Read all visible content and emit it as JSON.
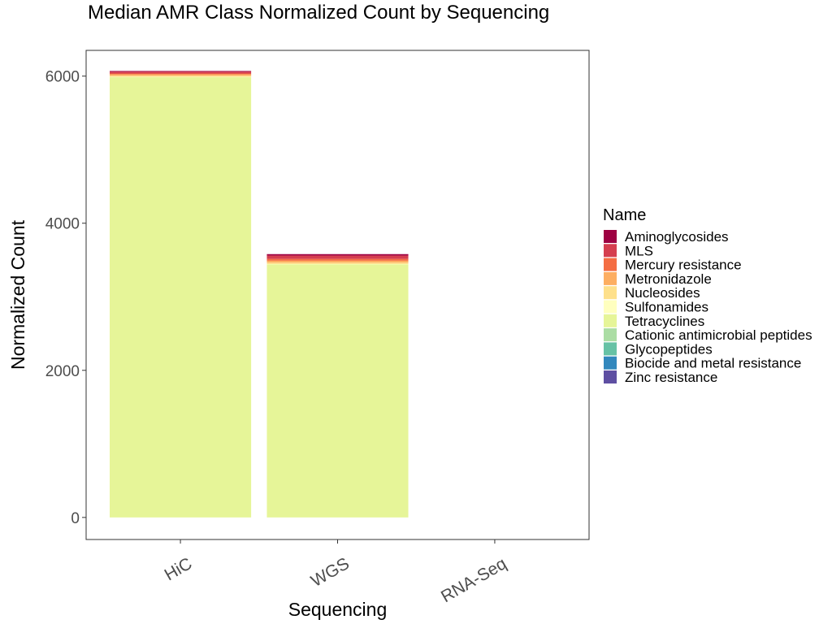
{
  "chart_data": {
    "type": "bar",
    "stacked": true,
    "title": "Median AMR Class Normalized Count by Sequencing",
    "xlabel": "Sequencing",
    "ylabel": "Normalized Count",
    "categories": [
      "HiC",
      "WGS",
      "RNA-Seq"
    ],
    "ylim": [
      -300,
      6350
    ],
    "yticks": [
      0,
      2000,
      4000,
      6000
    ],
    "grid": false,
    "legend": {
      "title": "Name",
      "position": "right"
    },
    "series": [
      {
        "name": "Aminoglycosides",
        "color": "#9E0142",
        "values": [
          10,
          20,
          0
        ]
      },
      {
        "name": "MLS",
        "color": "#D53E4F",
        "values": [
          25,
          45,
          0
        ]
      },
      {
        "name": "Mercury resistance",
        "color": "#F46D43",
        "values": [
          10,
          25,
          0
        ]
      },
      {
        "name": "Metronidazole",
        "color": "#FDAE61",
        "values": [
          20,
          25,
          0
        ]
      },
      {
        "name": "Nucleosides",
        "color": "#FEE08B",
        "values": [
          15,
          20,
          0
        ]
      },
      {
        "name": "Sulfonamides",
        "color": "#FFFFBF",
        "values": [
          5,
          5,
          0
        ]
      },
      {
        "name": "Tetracyclines",
        "color": "#E6F598",
        "values": [
          5985,
          3440,
          0
        ]
      },
      {
        "name": "Cationic antimicrobial peptides",
        "color": "#ABDDA4",
        "values": [
          0,
          0,
          0
        ]
      },
      {
        "name": "Glycopeptides",
        "color": "#66C2A5",
        "values": [
          0,
          0,
          0
        ]
      },
      {
        "name": "Biocide and metal resistance",
        "color": "#3288BD",
        "values": [
          0,
          0,
          0
        ]
      },
      {
        "name": "Zinc resistance",
        "color": "#5E4FA2",
        "values": [
          0,
          0,
          0
        ]
      }
    ]
  }
}
